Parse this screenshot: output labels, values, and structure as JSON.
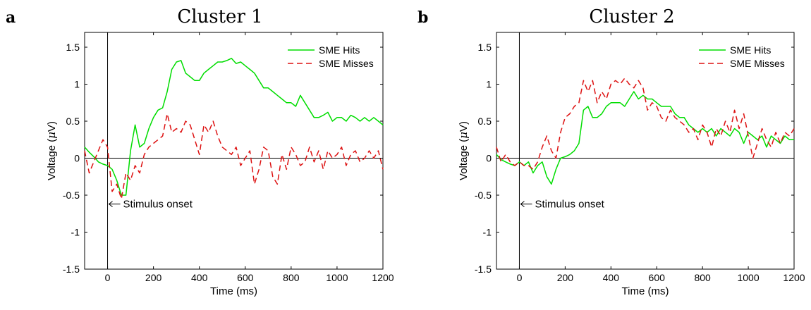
{
  "chart_data": [
    {
      "type": "line",
      "panel_label": "a",
      "title": "Cluster 1",
      "xlabel": "Time (ms)",
      "ylabel_prefix": "Voltage (",
      "ylabel_mu": "μ",
      "ylabel_suffix": "V)",
      "xlim": [
        -100,
        1200
      ],
      "ylim": [
        -1.5,
        1.7
      ],
      "x_ticks": [
        0,
        200,
        400,
        600,
        800,
        1000,
        1200
      ],
      "y_ticks": [
        -1.5,
        -1,
        -0.5,
        0,
        0.5,
        1,
        1.5
      ],
      "annotation": {
        "text": "Stimulus onset",
        "x": 0,
        "y": -0.62
      },
      "legend_position": "top-right",
      "series": [
        {
          "name": "SME Hits",
          "color": "#00dd00",
          "dash": "solid",
          "x": [
            -100,
            -80,
            -60,
            -40,
            -20,
            0,
            20,
            40,
            60,
            80,
            100,
            120,
            140,
            160,
            180,
            200,
            220,
            240,
            260,
            280,
            300,
            320,
            340,
            360,
            380,
            400,
            420,
            440,
            460,
            480,
            500,
            520,
            540,
            560,
            580,
            600,
            620,
            640,
            660,
            680,
            700,
            720,
            740,
            760,
            780,
            800,
            820,
            840,
            860,
            880,
            900,
            920,
            940,
            960,
            980,
            1000,
            1020,
            1040,
            1060,
            1080,
            1100,
            1120,
            1140,
            1160,
            1180,
            1200
          ],
          "y": [
            0.15,
            0.08,
            0.02,
            -0.05,
            -0.08,
            -0.1,
            -0.15,
            -0.3,
            -0.5,
            -0.5,
            0.1,
            0.45,
            0.15,
            0.2,
            0.4,
            0.55,
            0.65,
            0.68,
            0.9,
            1.2,
            1.3,
            1.32,
            1.15,
            1.1,
            1.05,
            1.05,
            1.15,
            1.2,
            1.25,
            1.3,
            1.3,
            1.32,
            1.35,
            1.28,
            1.3,
            1.25,
            1.2,
            1.15,
            1.05,
            0.95,
            0.95,
            0.9,
            0.85,
            0.8,
            0.75,
            0.75,
            0.7,
            0.85,
            0.75,
            0.65,
            0.55,
            0.55,
            0.58,
            0.62,
            0.5,
            0.55,
            0.55,
            0.5,
            0.58,
            0.55,
            0.5,
            0.55,
            0.5,
            0.55,
            0.5,
            0.45
          ]
        },
        {
          "name": "SME Misses",
          "color": "#dd1111",
          "dash": "dashed",
          "x": [
            -100,
            -80,
            -60,
            -40,
            -20,
            0,
            20,
            40,
            60,
            80,
            100,
            120,
            140,
            160,
            180,
            200,
            220,
            240,
            260,
            280,
            300,
            320,
            340,
            360,
            380,
            400,
            420,
            440,
            460,
            480,
            500,
            520,
            540,
            560,
            580,
            600,
            620,
            640,
            660,
            680,
            700,
            720,
            740,
            760,
            780,
            800,
            820,
            840,
            860,
            880,
            900,
            920,
            940,
            960,
            980,
            1000,
            1020,
            1040,
            1060,
            1080,
            1100,
            1120,
            1140,
            1160,
            1180,
            1200
          ],
          "y": [
            0.1,
            -0.2,
            -0.05,
            0.1,
            0.25,
            0.15,
            -0.45,
            -0.35,
            -0.55,
            -0.2,
            -0.3,
            -0.1,
            -0.2,
            0.05,
            0.15,
            0.2,
            0.25,
            0.3,
            0.6,
            0.35,
            0.4,
            0.35,
            0.5,
            0.45,
            0.25,
            0.05,
            0.45,
            0.35,
            0.5,
            0.3,
            0.15,
            0.1,
            0.05,
            0.15,
            -0.1,
            0.0,
            0.1,
            -0.35,
            -0.15,
            0.15,
            0.1,
            -0.25,
            -0.35,
            0.05,
            -0.15,
            0.15,
            0.05,
            -0.1,
            -0.05,
            0.15,
            -0.05,
            0.1,
            -0.15,
            0.1,
            0.0,
            0.05,
            0.15,
            -0.1,
            0.05,
            0.1,
            -0.05,
            0.0,
            0.1,
            0.0,
            0.1,
            -0.15
          ]
        }
      ]
    },
    {
      "type": "line",
      "panel_label": "b",
      "title": "Cluster 2",
      "xlabel": "Time (ms)",
      "ylabel_prefix": "Voltage (",
      "ylabel_mu": "μ",
      "ylabel_suffix": "V)",
      "xlim": [
        -100,
        1200
      ],
      "ylim": [
        -1.5,
        1.7
      ],
      "x_ticks": [
        0,
        200,
        400,
        600,
        800,
        1000,
        1200
      ],
      "y_ticks": [
        -1.5,
        -1,
        -0.5,
        0,
        0.5,
        1,
        1.5
      ],
      "annotation": {
        "text": "Stimulus onset",
        "x": 0,
        "y": -0.62
      },
      "legend_position": "top-right",
      "series": [
        {
          "name": "SME Hits",
          "color": "#00dd00",
          "dash": "solid",
          "x": [
            -100,
            -80,
            -60,
            -40,
            -20,
            0,
            20,
            40,
            60,
            80,
            100,
            120,
            140,
            160,
            180,
            200,
            220,
            240,
            260,
            280,
            300,
            320,
            340,
            360,
            380,
            400,
            420,
            440,
            460,
            480,
            500,
            520,
            540,
            560,
            580,
            600,
            620,
            640,
            660,
            680,
            700,
            720,
            740,
            760,
            780,
            800,
            820,
            840,
            860,
            880,
            900,
            920,
            940,
            960,
            980,
            1000,
            1020,
            1040,
            1060,
            1080,
            1100,
            1120,
            1140,
            1160,
            1180,
            1200
          ],
          "y": [
            0.05,
            -0.02,
            -0.05,
            -0.08,
            -0.1,
            -0.05,
            -0.1,
            -0.05,
            -0.2,
            -0.1,
            -0.05,
            -0.25,
            -0.35,
            -0.15,
            0.0,
            0.02,
            0.05,
            0.1,
            0.2,
            0.65,
            0.7,
            0.55,
            0.55,
            0.6,
            0.7,
            0.75,
            0.75,
            0.75,
            0.7,
            0.8,
            0.9,
            0.8,
            0.85,
            0.8,
            0.8,
            0.75,
            0.7,
            0.7,
            0.7,
            0.6,
            0.55,
            0.55,
            0.45,
            0.4,
            0.35,
            0.4,
            0.35,
            0.4,
            0.3,
            0.4,
            0.35,
            0.3,
            0.4,
            0.35,
            0.2,
            0.35,
            0.3,
            0.25,
            0.3,
            0.15,
            0.3,
            0.25,
            0.2,
            0.3,
            0.25,
            0.25
          ]
        },
        {
          "name": "SME Misses",
          "color": "#dd1111",
          "dash": "dashed",
          "x": [
            -100,
            -80,
            -60,
            -40,
            -20,
            0,
            20,
            40,
            60,
            80,
            100,
            120,
            140,
            160,
            180,
            200,
            220,
            240,
            260,
            280,
            300,
            320,
            340,
            360,
            380,
            400,
            420,
            440,
            460,
            480,
            500,
            520,
            540,
            560,
            580,
            600,
            620,
            640,
            660,
            680,
            700,
            720,
            740,
            760,
            780,
            800,
            820,
            840,
            860,
            880,
            900,
            920,
            940,
            960,
            980,
            1000,
            1020,
            1040,
            1060,
            1080,
            1100,
            1120,
            1140,
            1160,
            1180,
            1200
          ],
          "y": [
            0.15,
            -0.05,
            0.05,
            -0.05,
            -0.1,
            -0.05,
            -0.1,
            -0.1,
            -0.15,
            -0.05,
            0.15,
            0.3,
            0.1,
            0.0,
            0.35,
            0.55,
            0.6,
            0.7,
            0.75,
            1.05,
            0.9,
            1.05,
            0.75,
            0.9,
            0.8,
            1.0,
            1.05,
            1.0,
            1.08,
            1.0,
            0.95,
            1.05,
            0.95,
            0.65,
            0.75,
            0.7,
            0.55,
            0.5,
            0.65,
            0.55,
            0.5,
            0.45,
            0.35,
            0.4,
            0.25,
            0.45,
            0.35,
            0.15,
            0.4,
            0.3,
            0.5,
            0.35,
            0.65,
            0.4,
            0.6,
            0.3,
            0.0,
            0.2,
            0.4,
            0.25,
            0.15,
            0.35,
            0.2,
            0.35,
            0.3,
            0.4
          ]
        }
      ]
    }
  ]
}
